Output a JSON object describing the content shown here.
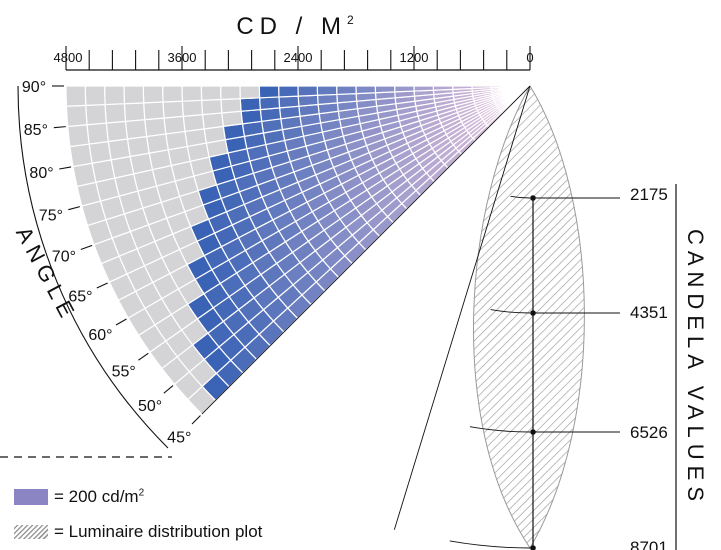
{
  "top_axis": {
    "title": "CD / M",
    "title_superscript": "2",
    "tick_labels": [
      "4800",
      "3600",
      "2400",
      "1200",
      "0"
    ]
  },
  "angle_axis": {
    "title": "ANGLE",
    "labels": [
      "90°",
      "85°",
      "80°",
      "75°",
      "70°",
      "65°",
      "60°",
      "55°",
      "50°",
      "45°"
    ]
  },
  "candela_axis": {
    "title": "CANDELA VALUES",
    "values": [
      "2175",
      "4351",
      "6526",
      "8701"
    ]
  },
  "legend": {
    "unit_text": "= 200 cd/m",
    "unit_superscript": "2",
    "plot_text": "= Luminaire distribution plot"
  },
  "colors": {
    "background_wedge": "#d4d4d6",
    "luminance_high": "#3a63b5",
    "luminance_low": "#e9c5dd",
    "hatch": "#9a9a9a"
  },
  "chart_data": {
    "type": "polar-luminance",
    "luminance_scale_max": 4800,
    "angle_range_deg": [
      45,
      90
    ],
    "angles_deg": [
      45,
      50,
      55,
      60,
      65,
      70,
      75,
      80,
      85,
      90
    ],
    "luminance_cd_m2": [
      4600,
      4400,
      4200,
      4000,
      3800,
      3600,
      3400,
      3200,
      3000,
      2800
    ],
    "candela_ticks": [
      2175,
      4351,
      6526,
      8701
    ]
  }
}
